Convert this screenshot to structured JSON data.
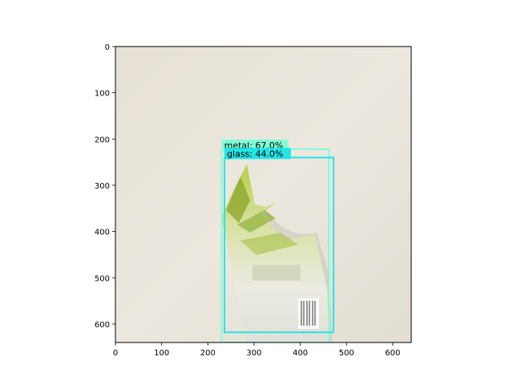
{
  "chart_data": {
    "type": "image-detection",
    "title": "",
    "xlabel": "",
    "ylabel": "",
    "xlim": [
      0,
      640
    ],
    "ylim": [
      640,
      0
    ],
    "xticks": [
      0,
      100,
      200,
      300,
      400,
      500,
      600
    ],
    "yticks": [
      0,
      100,
      200,
      300,
      400,
      500,
      600
    ],
    "grid": false,
    "detections": [
      {
        "label": "metal: 67.0%",
        "x1": 230,
        "y1": 222,
        "x2": 462,
        "y2": 640,
        "color": "#7fffd4"
      },
      {
        "label": "glass: 44.0%",
        "x1": 236,
        "y1": 240,
        "x2": 472,
        "y2": 618,
        "color": "#22e5e5"
      }
    ]
  }
}
